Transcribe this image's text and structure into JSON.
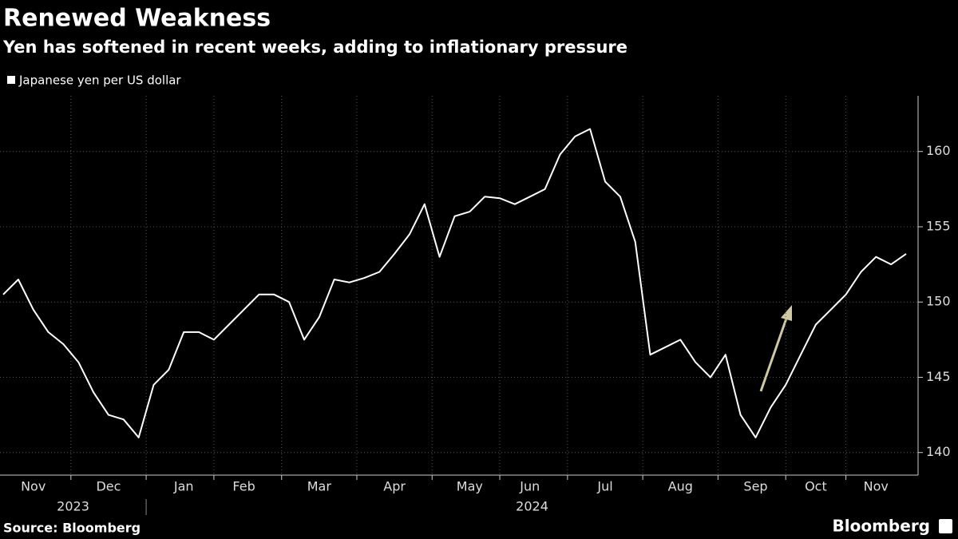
{
  "chart_data": {
    "type": "line",
    "title": "Renewed Weakness",
    "subtitle": "Yen has softened in recent weeks, adding to inflationary pressure",
    "source": "Source: Bloomberg",
    "brand": "Bloomberg",
    "categories": [
      null,
      null,
      "Nov",
      null,
      null,
      null,
      null,
      "Dec",
      null,
      null,
      null,
      null,
      "Jan",
      null,
      null,
      null,
      "Feb",
      null,
      null,
      null,
      null,
      "Mar",
      null,
      null,
      null,
      null,
      "Apr",
      null,
      null,
      null,
      null,
      "May",
      null,
      null,
      null,
      "Jun",
      null,
      null,
      null,
      null,
      "Jul",
      null,
      null,
      null,
      null,
      "Aug",
      null,
      null,
      null,
      null,
      "Sep",
      null,
      null,
      null,
      "Oct",
      null,
      null,
      null,
      "Nov",
      null,
      null
    ],
    "year_labels": [
      "2023",
      "2024"
    ],
    "series": [
      {
        "name": "Japanese yen per US dollar",
        "color": "#ffffff",
        "values": [
          150.5,
          151.5,
          149.5,
          148,
          147.2,
          146,
          144,
          142.5,
          142.2,
          141,
          144.5,
          145.5,
          148,
          148,
          147.5,
          148.5,
          149.5,
          150.5,
          150.5,
          150,
          147.5,
          149,
          151.5,
          151.3,
          151.6,
          152,
          153.2,
          154.5,
          156.5,
          153,
          155.7,
          156,
          157,
          156.9,
          156.5,
          157,
          157.5,
          159.8,
          161,
          161.5,
          158,
          157,
          154,
          146.5,
          147,
          147.5,
          146,
          145,
          146.5,
          142.5,
          141,
          143,
          144.5,
          146.5,
          148.5,
          149.5,
          150.5,
          152,
          153,
          152.5,
          153.2
        ]
      }
    ],
    "ylim": [
      138.5,
      163.7
    ],
    "yticks": [
      140,
      145,
      150,
      155,
      160
    ],
    "grid": true
  }
}
